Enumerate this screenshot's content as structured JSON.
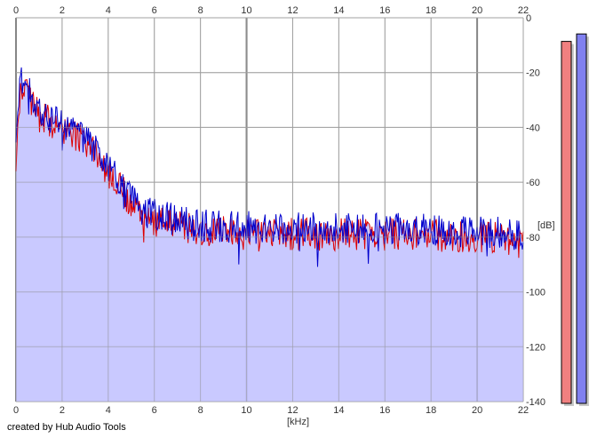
{
  "credit_text": "created by Hub Audio Tools",
  "chart_data": {
    "type": "area",
    "xlabel": "[kHz]",
    "ylabel": "[dB]",
    "xlim": [
      0,
      22
    ],
    "ylim": [
      -140,
      0
    ],
    "x_ticks": [
      0,
      2,
      4,
      6,
      8,
      10,
      12,
      14,
      16,
      18,
      20,
      22
    ],
    "y_ticks": [
      0,
      -20,
      -40,
      -60,
      -80,
      -100,
      -120,
      -140
    ],
    "grid": true,
    "series": [
      {
        "color": "#0000cc",
        "x": [
          0,
          0.2,
          0.5,
          1,
          1.5,
          2,
          2.5,
          3,
          3.5,
          4,
          4.5,
          5,
          5.5,
          6,
          7,
          8,
          9,
          10,
          11,
          12,
          13,
          14,
          15,
          16,
          17,
          18,
          19,
          20,
          21,
          22
        ],
        "values": [
          -50,
          -22,
          -26,
          -34,
          -36,
          -38,
          -40,
          -44,
          -48,
          -54,
          -60,
          -66,
          -70,
          -72,
          -74,
          -76,
          -76,
          -76,
          -77,
          -77,
          -77,
          -77,
          -77,
          -77,
          -77,
          -77,
          -78,
          -78,
          -78,
          -80
        ]
      },
      {
        "color": "#dd0000",
        "x": [
          0,
          0.2,
          0.5,
          1,
          1.5,
          2,
          2.5,
          3,
          3.5,
          4,
          4.5,
          5,
          5.5,
          6,
          7,
          8,
          9,
          10,
          11,
          12,
          13,
          14,
          15,
          16,
          17,
          18,
          19,
          20,
          21,
          22
        ],
        "values": [
          -52,
          -24,
          -28,
          -36,
          -38,
          -40,
          -42,
          -46,
          -50,
          -56,
          -62,
          -68,
          -72,
          -74,
          -76,
          -78,
          -78,
          -79,
          -79,
          -79,
          -79,
          -79,
          -79,
          -79,
          -79,
          -79,
          -80,
          -80,
          -80,
          -82
        ]
      }
    ],
    "fill_color": "#c0c0ff",
    "level_meters": [
      {
        "color": "#f08080",
        "level": 0.97
      },
      {
        "color": "#8080f0",
        "level": 0.99
      }
    ]
  }
}
